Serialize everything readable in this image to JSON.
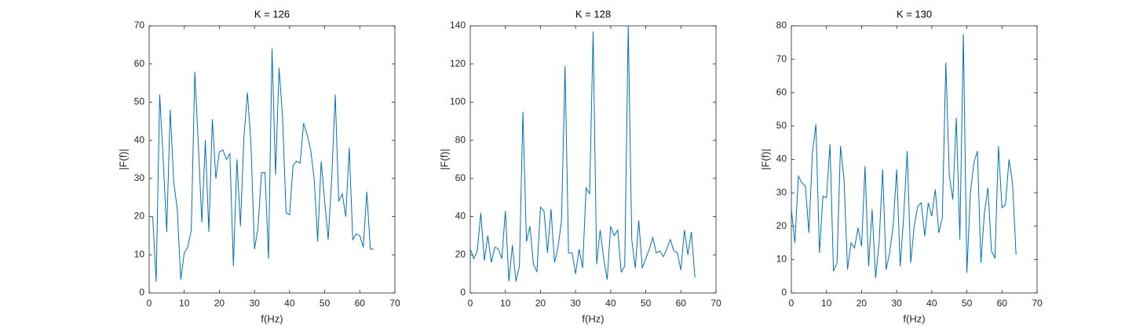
{
  "chart_data": [
    {
      "type": "line",
      "title": "K = 126",
      "xlabel": "f(Hz)",
      "ylabel": "|F(f)|",
      "color": "#0072bd",
      "x": [
        0,
        1,
        2,
        3,
        4,
        5,
        6,
        7,
        8,
        9,
        10,
        11,
        12,
        13,
        14,
        15,
        16,
        17,
        18,
        19,
        20,
        21,
        22,
        23,
        24,
        25,
        26,
        27,
        28,
        29,
        30,
        31,
        32,
        33,
        34,
        35,
        36,
        37,
        38,
        39,
        40,
        41,
        42,
        43,
        44,
        45,
        46,
        47,
        48,
        49,
        50,
        51,
        52,
        53,
        54,
        55,
        56,
        57,
        58,
        59,
        60,
        61,
        62,
        63,
        64
      ],
      "values": [
        20,
        20,
        3,
        52,
        35,
        16,
        48,
        29,
        22,
        3.5,
        10.5,
        12,
        16.5,
        58,
        39,
        18.5,
        40,
        16,
        45.5,
        30,
        37,
        37.5,
        35,
        36.5,
        7,
        35,
        17.5,
        41,
        52.5,
        39,
        11.5,
        17,
        31.5,
        31.5,
        9,
        64,
        31,
        59,
        46,
        21,
        20.5,
        33.5,
        34.5,
        34,
        44.5,
        41.5,
        37.5,
        30,
        13.5,
        34.5,
        24,
        14,
        30,
        52,
        24,
        26,
        20,
        38,
        14,
        15.5,
        15,
        12,
        26.5,
        11.5,
        11.5
      ],
      "xlim": [
        0,
        70
      ],
      "ylim": [
        0,
        70
      ],
      "xticks": [
        0,
        10,
        20,
        30,
        40,
        50,
        60,
        70
      ],
      "yticks": [
        0,
        10,
        20,
        30,
        40,
        50,
        60,
        70
      ]
    },
    {
      "type": "line",
      "title": "K = 128",
      "xlabel": "f(Hz)",
      "ylabel": "|F(f)|",
      "color": "#0072bd",
      "x": [
        0,
        1,
        2,
        3,
        4,
        5,
        6,
        7,
        8,
        9,
        10,
        11,
        12,
        13,
        14,
        15,
        16,
        17,
        18,
        19,
        20,
        21,
        22,
        23,
        24,
        25,
        26,
        27,
        28,
        29,
        30,
        31,
        32,
        33,
        34,
        35,
        36,
        37,
        38,
        39,
        40,
        41,
        42,
        43,
        44,
        45,
        46,
        47,
        48,
        49,
        50,
        51,
        52,
        53,
        54,
        55,
        56,
        57,
        58,
        59,
        60,
        61,
        62,
        63,
        64
      ],
      "values": [
        23,
        18,
        22,
        42,
        17,
        30,
        16,
        24,
        23,
        18,
        43,
        6,
        25,
        6,
        14,
        95,
        27,
        35,
        15,
        11,
        45,
        43,
        21,
        44,
        16,
        24,
        38,
        119,
        21,
        21,
        10,
        23,
        13,
        55,
        52,
        137,
        15,
        33,
        18,
        7,
        35,
        30,
        33,
        11,
        14,
        140,
        28,
        13,
        38,
        13,
        18,
        23,
        29,
        21,
        22,
        19,
        23,
        28,
        22,
        21,
        12,
        33,
        20,
        32,
        8
      ],
      "xlim": [
        0,
        70
      ],
      "ylim": [
        0,
        140
      ],
      "xticks": [
        0,
        10,
        20,
        30,
        40,
        50,
        60,
        70
      ],
      "yticks": [
        0,
        20,
        40,
        60,
        80,
        100,
        120,
        140
      ]
    },
    {
      "type": "line",
      "title": "K = 130",
      "xlabel": "f(Hz)",
      "ylabel": "|F(f)|",
      "color": "#0072bd",
      "x": [
        0,
        1,
        2,
        3,
        4,
        5,
        6,
        7,
        8,
        9,
        10,
        11,
        12,
        13,
        14,
        15,
        16,
        17,
        18,
        19,
        20,
        21,
        22,
        23,
        24,
        25,
        26,
        27,
        28,
        29,
        30,
        31,
        32,
        33,
        34,
        35,
        36,
        37,
        38,
        39,
        40,
        41,
        42,
        43,
        44,
        45,
        46,
        47,
        48,
        49,
        50,
        51,
        52,
        53,
        54,
        55,
        56,
        57,
        58,
        59,
        60,
        61,
        62,
        63,
        64
      ],
      "values": [
        25,
        15,
        35,
        33,
        32,
        18,
        42,
        50.5,
        12,
        29,
        28.5,
        44.5,
        6.5,
        9,
        44,
        34,
        7,
        15,
        13.5,
        19.5,
        14,
        38,
        8,
        25,
        4.5,
        15,
        37,
        7,
        12,
        20,
        37,
        8,
        23,
        42.5,
        9,
        20,
        26,
        27,
        17,
        27,
        23,
        31,
        18,
        22.5,
        69,
        35,
        28,
        52.5,
        16,
        77.5,
        6,
        30,
        39,
        42.5,
        9,
        24,
        31.5,
        12.5,
        10.5,
        44,
        25.5,
        26.5,
        40,
        33,
        11.5
      ],
      "xlim": [
        0,
        70
      ],
      "ylim": [
        0,
        80
      ],
      "xticks": [
        0,
        10,
        20,
        30,
        40,
        50,
        60,
        70
      ],
      "yticks": [
        0,
        10,
        20,
        30,
        40,
        50,
        60,
        70,
        80
      ]
    }
  ]
}
